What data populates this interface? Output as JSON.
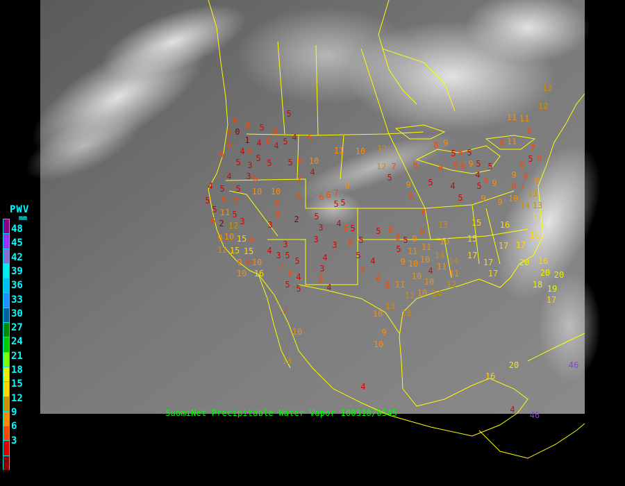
{
  "title": "SuomiNet Precipitable Water Vapor 100318/0545",
  "legend": {
    "title": "PWV",
    "unit": "mm",
    "labels": [
      "48",
      "45",
      "42",
      "39",
      "36",
      "33",
      "30",
      "27",
      "24",
      "21",
      "18",
      "15",
      "12",
      "9",
      "6",
      "3"
    ],
    "colors": [
      "#8B008B",
      "#9B30FF",
      "#8470D0",
      "#00EEEE",
      "#00BFEF",
      "#1E90FF",
      "#005F9F",
      "#008B00",
      "#00CD00",
      "#7FFF00",
      "#EEEE00",
      "#FFD700",
      "#CD9000",
      "#FF8C00",
      "#FF4500",
      "#DD0000",
      "#8B0000"
    ]
  },
  "colors": {
    "background": "#000000",
    "borders": "#FFFF00",
    "title": "#00FF00",
    "legend_text": "#00FFFF"
  },
  "stations": [
    5,
    6,
    8,
    5,
    8,
    0,
    7,
    6,
    1,
    4,
    6,
    4,
    5,
    4,
    6,
    6,
    4,
    6,
    5,
    5,
    3,
    3,
    5,
    5,
    8,
    10,
    4,
    4,
    6,
    7,
    4,
    5,
    5,
    10,
    10,
    5,
    8,
    7,
    6,
    6,
    6,
    6,
    7,
    5,
    5,
    9,
    5,
    11,
    5,
    6,
    2,
    12,
    3,
    10,
    2,
    5,
    3,
    4,
    6,
    5,
    3,
    8,
    15,
    9,
    15,
    12,
    15,
    6,
    8,
    9,
    10,
    10,
    16,
    3,
    3,
    6,
    5,
    4,
    3,
    5,
    3,
    5,
    4,
    3,
    7,
    6,
    4,
    6,
    4,
    5,
    5,
    7,
    10,
    13,
    4,
    5,
    6,
    8,
    5,
    9,
    6,
    5,
    4,
    7,
    5,
    11,
    9,
    10,
    11,
    10,
    6,
    8,
    11,
    10,
    12,
    10,
    13,
    10,
    13,
    9,
    10,
    4,
    11,
    11,
    10,
    12,
    12,
    7,
    5,
    8,
    8,
    9,
    6,
    8,
    5,
    4,
    5,
    9,
    6,
    6,
    6,
    5,
    8,
    5,
    9,
    5,
    4,
    5,
    6,
    5,
    9,
    6,
    9,
    8,
    8,
    7,
    9,
    5,
    8,
    8,
    11,
    7,
    11,
    11,
    8,
    12,
    13,
    9,
    9,
    10,
    14,
    13,
    13,
    17,
    15,
    16,
    13,
    10,
    15,
    17,
    17,
    16,
    17,
    17,
    20,
    20,
    20,
    18,
    19,
    17,
    16,
    14,
    11,
    12,
    14,
    14,
    10,
    17,
    16,
    20,
    46,
    46,
    4
  ]
}
